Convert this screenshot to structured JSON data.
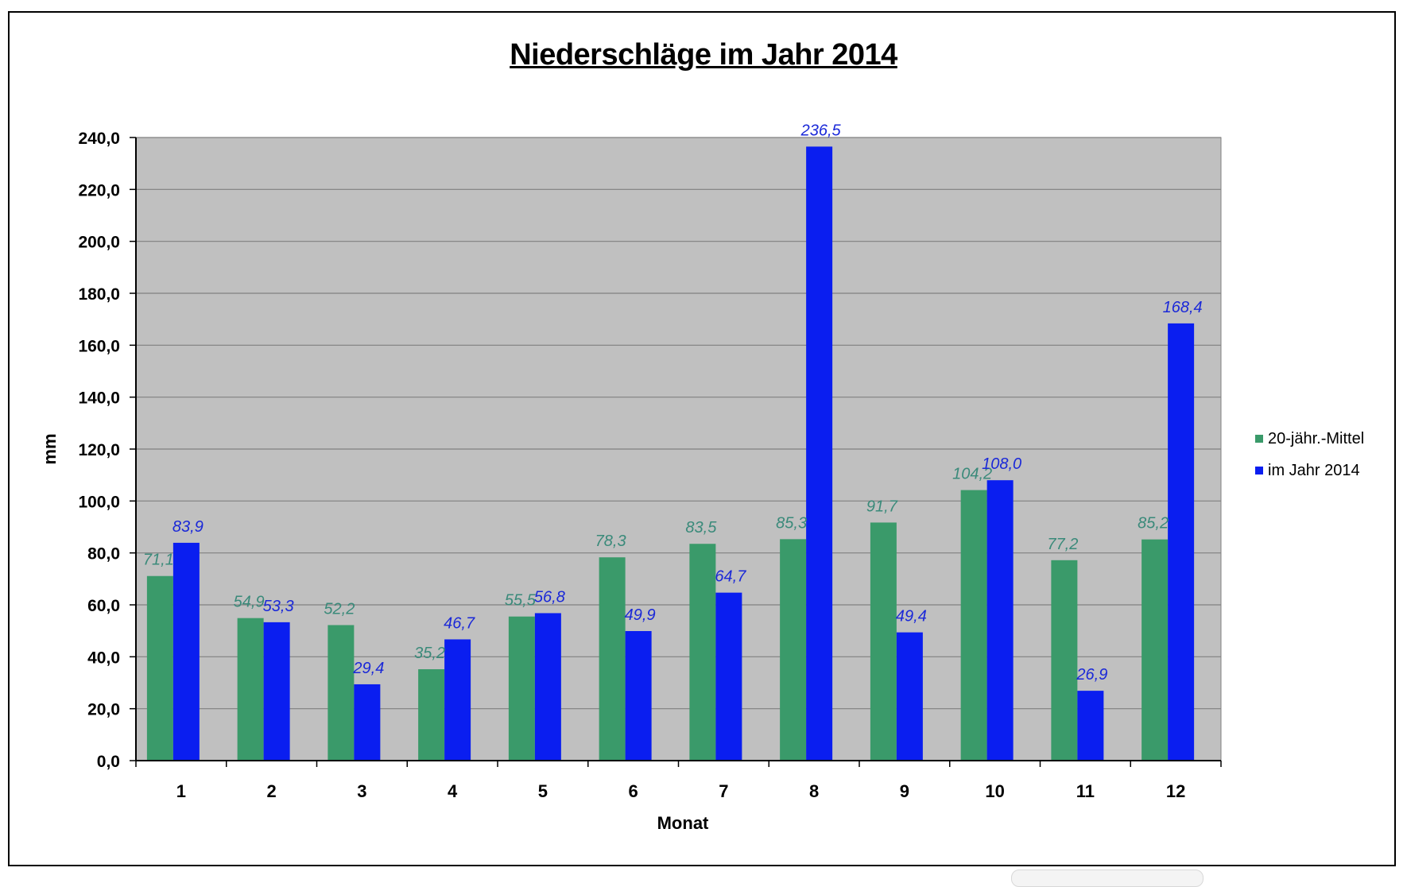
{
  "chart_data": {
    "type": "bar",
    "title": "Niederschläge im Jahr 2014",
    "xlabel": "Monat",
    "ylabel": "mm",
    "ylim": [
      0,
      240
    ],
    "y_tick_step": 20,
    "y_tick_labels": [
      "0,0",
      "20,0",
      "40,0",
      "60,0",
      "80,0",
      "100,0",
      "120,0",
      "140,0",
      "160,0",
      "180,0",
      "200,0",
      "220,0",
      "240,0"
    ],
    "categories": [
      "1",
      "2",
      "3",
      "4",
      "5",
      "6",
      "7",
      "8",
      "9",
      "10",
      "11",
      "12"
    ],
    "grid": true,
    "legend_position": "right",
    "plot_background": "#c0c0c0",
    "series": [
      {
        "name": "20-jähr.-Mittel",
        "color": "#3a9a6a",
        "label_color": "#3a8a7a",
        "values": [
          71.1,
          54.9,
          52.2,
          35.2,
          55.5,
          78.3,
          83.5,
          85.3,
          91.7,
          104.2,
          77.2,
          85.2
        ],
        "data_labels": [
          "71,1",
          "54,9",
          "52,2",
          "35,2",
          "55,5",
          "78,3",
          "83,5",
          "85,3",
          "91,7",
          "104,2",
          "77,2",
          "85,2"
        ]
      },
      {
        "name": "im Jahr 2014",
        "color": "#0a1ef0",
        "label_color": "#1a28d8",
        "values": [
          83.9,
          53.3,
          29.4,
          46.7,
          56.8,
          49.9,
          64.7,
          236.5,
          49.4,
          108.0,
          26.9,
          168.4
        ],
        "data_labels": [
          "83,9",
          "53,3",
          "29,4",
          "46,7",
          "56,8",
          "49,9",
          "64,7",
          "236,5",
          "49,4",
          "108,0",
          "26,9",
          "168,4"
        ]
      }
    ]
  }
}
